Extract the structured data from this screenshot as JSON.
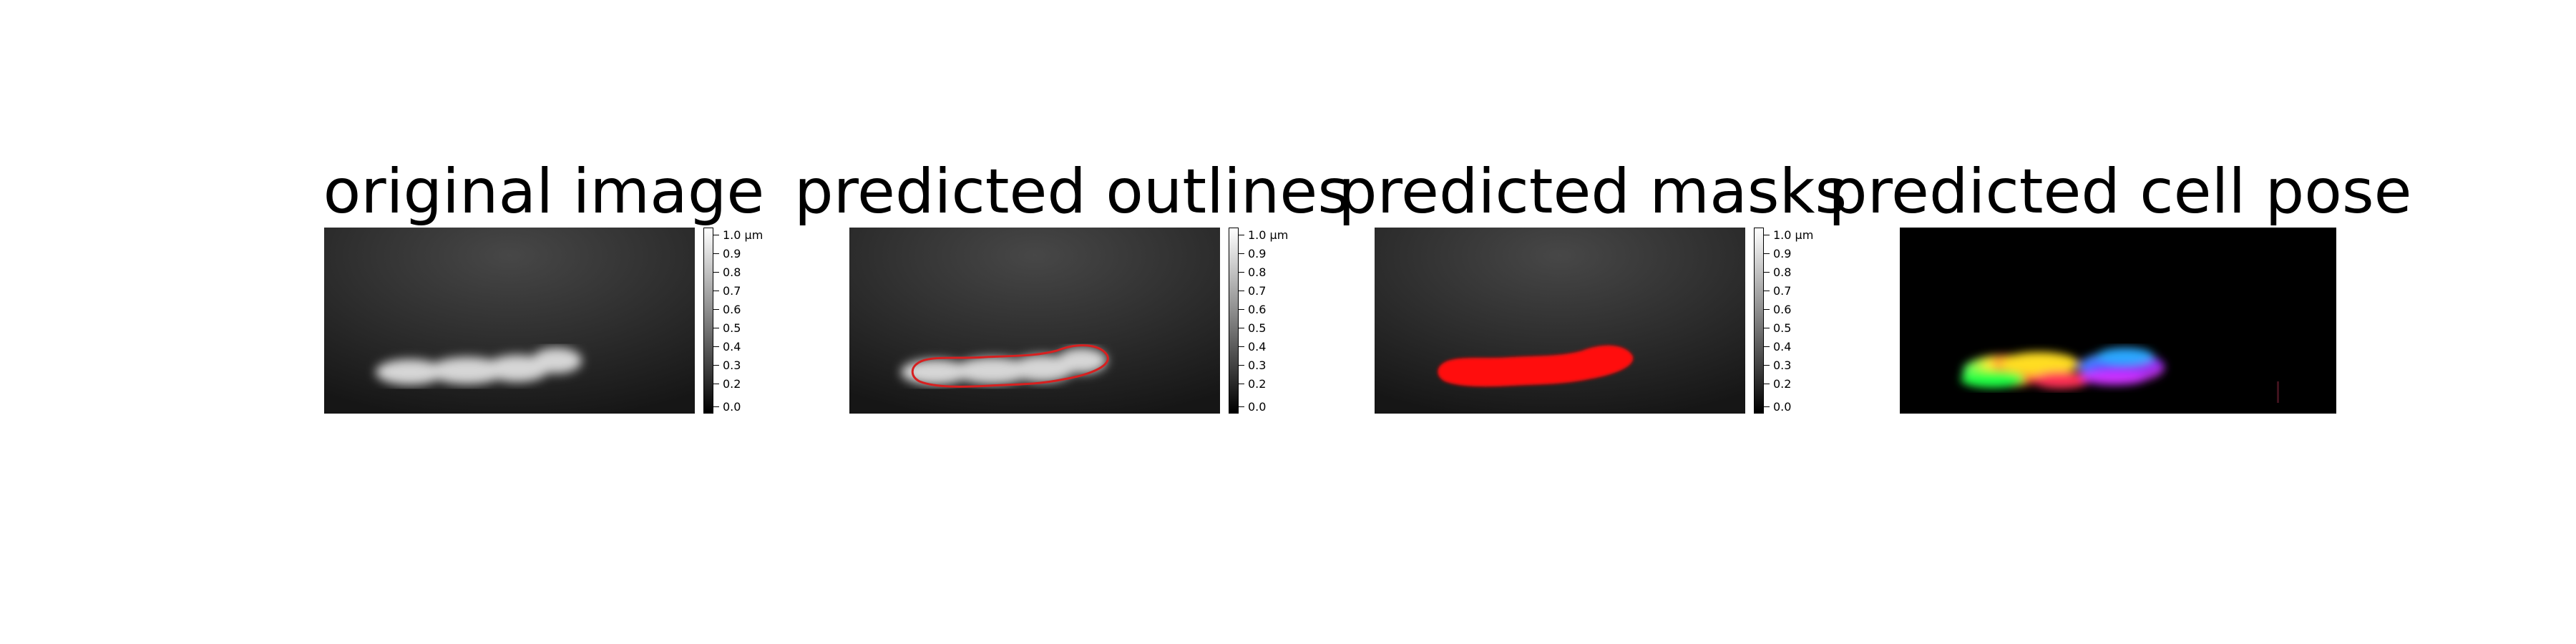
{
  "figure": {
    "panels": [
      {
        "title": "original image"
      },
      {
        "title": "predicted outlines"
      },
      {
        "title": "predicted masks"
      },
      {
        "title": "predicted cell pose"
      }
    ],
    "colorbar": {
      "ticks": [
        "1.0 μm",
        "0.9",
        "0.8",
        "0.7",
        "0.6",
        "0.5",
        "0.4",
        "0.3",
        "0.2",
        "0.0"
      ],
      "tick_values": [
        1.0,
        0.9,
        0.8,
        0.7,
        0.6,
        0.5,
        0.4,
        0.3,
        0.2,
        0.0
      ]
    },
    "colors": {
      "outline": "#d62020",
      "mask": "#ff0000",
      "background_light": "#3c3c3c",
      "background_dark": "#111111"
    }
  }
}
